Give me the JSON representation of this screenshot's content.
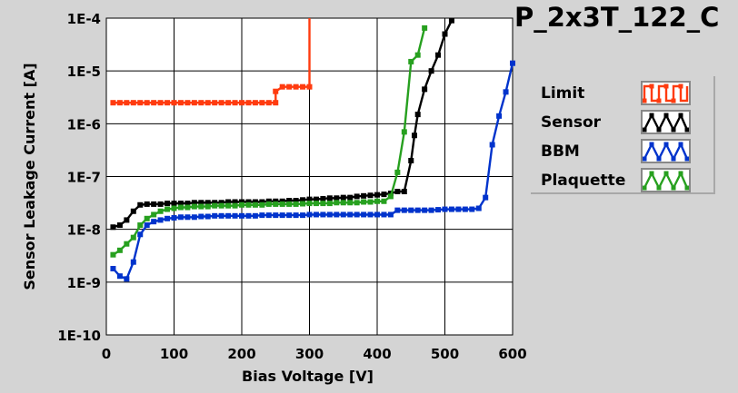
{
  "chart_data": {
    "type": "line",
    "title": "P_2x3T_122_C",
    "xlabel": "Bias Voltage [V]",
    "ylabel": "Sensor Leakage Current [A]",
    "xlim": [
      0,
      600
    ],
    "ylim": [
      1e-10,
      0.0001
    ],
    "yscale": "log",
    "grid": true,
    "legend_position": "right",
    "x_ticks": [
      "0",
      "100",
      "200",
      "300",
      "400",
      "500",
      "600"
    ],
    "y_ticks": [
      "1E-10",
      "1E-9",
      "1E-8",
      "1E-7",
      "1E-6",
      "1E-5",
      "1E-4"
    ],
    "series": [
      {
        "name": "Limit",
        "color": "#ff3b0f",
        "pattern": "square-wave",
        "points": [
          [
            10,
            2.5e-06
          ],
          [
            20,
            2.5e-06
          ],
          [
            30,
            2.5e-06
          ],
          [
            40,
            2.5e-06
          ],
          [
            50,
            2.5e-06
          ],
          [
            60,
            2.5e-06
          ],
          [
            70,
            2.5e-06
          ],
          [
            80,
            2.5e-06
          ],
          [
            90,
            2.5e-06
          ],
          [
            100,
            2.5e-06
          ],
          [
            110,
            2.5e-06
          ],
          [
            120,
            2.5e-06
          ],
          [
            130,
            2.5e-06
          ],
          [
            140,
            2.5e-06
          ],
          [
            150,
            2.5e-06
          ],
          [
            160,
            2.5e-06
          ],
          [
            170,
            2.5e-06
          ],
          [
            180,
            2.5e-06
          ],
          [
            190,
            2.5e-06
          ],
          [
            200,
            2.5e-06
          ],
          [
            210,
            2.5e-06
          ],
          [
            220,
            2.5e-06
          ],
          [
            230,
            2.5e-06
          ],
          [
            240,
            2.5e-06
          ],
          [
            250,
            2.5e-06
          ],
          [
            250,
            4.1e-06
          ],
          [
            260,
            5e-06
          ],
          [
            270,
            5e-06
          ],
          [
            280,
            5e-06
          ],
          [
            290,
            5e-06
          ],
          [
            300,
            5e-06
          ],
          [
            300,
            0.0001
          ]
        ]
      },
      {
        "name": "Sensor",
        "color": "#000000",
        "pattern": "triangle-wave",
        "points": [
          [
            10,
            1.1e-08
          ],
          [
            20,
            1.2e-08
          ],
          [
            30,
            1.5e-08
          ],
          [
            40,
            2.2e-08
          ],
          [
            50,
            2.9e-08
          ],
          [
            60,
            3e-08
          ],
          [
            70,
            3e-08
          ],
          [
            80,
            3e-08
          ],
          [
            90,
            3.1e-08
          ],
          [
            100,
            3.1e-08
          ],
          [
            110,
            3.1e-08
          ],
          [
            120,
            3.1e-08
          ],
          [
            130,
            3.2e-08
          ],
          [
            140,
            3.2e-08
          ],
          [
            150,
            3.2e-08
          ],
          [
            160,
            3.2e-08
          ],
          [
            170,
            3.2e-08
          ],
          [
            180,
            3.3e-08
          ],
          [
            190,
            3.3e-08
          ],
          [
            200,
            3.3e-08
          ],
          [
            210,
            3.3e-08
          ],
          [
            220,
            3.3e-08
          ],
          [
            230,
            3.3e-08
          ],
          [
            240,
            3.4e-08
          ],
          [
            250,
            3.4e-08
          ],
          [
            260,
            3.4e-08
          ],
          [
            270,
            3.5e-08
          ],
          [
            280,
            3.5e-08
          ],
          [
            290,
            3.6e-08
          ],
          [
            300,
            3.7e-08
          ],
          [
            310,
            3.7e-08
          ],
          [
            320,
            3.8e-08
          ],
          [
            330,
            3.9e-08
          ],
          [
            340,
            3.9e-08
          ],
          [
            350,
            4e-08
          ],
          [
            360,
            4e-08
          ],
          [
            370,
            4.2e-08
          ],
          [
            380,
            4.3e-08
          ],
          [
            390,
            4.4e-08
          ],
          [
            400,
            4.5e-08
          ],
          [
            410,
            4.6e-08
          ],
          [
            420,
            4.8e-08
          ],
          [
            430,
            5.2e-08
          ],
          [
            440,
            5.2e-08
          ],
          [
            450,
            2e-07
          ],
          [
            455,
            6e-07
          ],
          [
            460,
            1.5e-06
          ],
          [
            470,
            4.5e-06
          ],
          [
            480,
            1e-05
          ],
          [
            490,
            2e-05
          ],
          [
            500,
            5e-05
          ],
          [
            510,
            9e-05
          ]
        ]
      },
      {
        "name": "BBM",
        "color": "#0033cc",
        "pattern": "triangle-wave",
        "points": [
          [
            10,
            1.8e-09
          ],
          [
            20,
            1.3e-09
          ],
          [
            30,
            1.15e-09
          ],
          [
            40,
            2.4e-09
          ],
          [
            50,
            8e-09
          ],
          [
            60,
            1.2e-08
          ],
          [
            70,
            1.4e-08
          ],
          [
            80,
            1.5e-08
          ],
          [
            90,
            1.6e-08
          ],
          [
            100,
            1.65e-08
          ],
          [
            110,
            1.7e-08
          ],
          [
            120,
            1.7e-08
          ],
          [
            130,
            1.7e-08
          ],
          [
            140,
            1.75e-08
          ],
          [
            150,
            1.75e-08
          ],
          [
            160,
            1.8e-08
          ],
          [
            170,
            1.8e-08
          ],
          [
            180,
            1.8e-08
          ],
          [
            190,
            1.8e-08
          ],
          [
            200,
            1.8e-08
          ],
          [
            210,
            1.8e-08
          ],
          [
            220,
            1.8e-08
          ],
          [
            230,
            1.85e-08
          ],
          [
            240,
            1.85e-08
          ],
          [
            250,
            1.85e-08
          ],
          [
            260,
            1.85e-08
          ],
          [
            270,
            1.85e-08
          ],
          [
            280,
            1.85e-08
          ],
          [
            290,
            1.85e-08
          ],
          [
            300,
            1.9e-08
          ],
          [
            310,
            1.9e-08
          ],
          [
            320,
            1.9e-08
          ],
          [
            330,
            1.9e-08
          ],
          [
            340,
            1.9e-08
          ],
          [
            350,
            1.9e-08
          ],
          [
            360,
            1.9e-08
          ],
          [
            370,
            1.9e-08
          ],
          [
            380,
            1.9e-08
          ],
          [
            390,
            1.9e-08
          ],
          [
            400,
            1.9e-08
          ],
          [
            410,
            1.9e-08
          ],
          [
            420,
            1.9e-08
          ],
          [
            430,
            2.3e-08
          ],
          [
            440,
            2.3e-08
          ],
          [
            450,
            2.3e-08
          ],
          [
            460,
            2.3e-08
          ],
          [
            470,
            2.3e-08
          ],
          [
            480,
            2.3e-08
          ],
          [
            490,
            2.35e-08
          ],
          [
            500,
            2.4e-08
          ],
          [
            510,
            2.4e-08
          ],
          [
            520,
            2.4e-08
          ],
          [
            530,
            2.4e-08
          ],
          [
            540,
            2.4e-08
          ],
          [
            550,
            2.5e-08
          ],
          [
            560,
            4e-08
          ],
          [
            570,
            4e-07
          ],
          [
            580,
            1.4e-06
          ],
          [
            590,
            4e-06
          ],
          [
            600,
            1.4e-05
          ]
        ]
      },
      {
        "name": "Plaquette",
        "color": "#27a01f",
        "pattern": "triangle-wave",
        "points": [
          [
            10,
            3.3e-09
          ],
          [
            20,
            4e-09
          ],
          [
            30,
            5.3e-09
          ],
          [
            40,
            7e-09
          ],
          [
            50,
            1.2e-08
          ],
          [
            60,
            1.6e-08
          ],
          [
            70,
            1.9e-08
          ],
          [
            80,
            2.2e-08
          ],
          [
            90,
            2.4e-08
          ],
          [
            100,
            2.5e-08
          ],
          [
            110,
            2.6e-08
          ],
          [
            120,
            2.6e-08
          ],
          [
            130,
            2.7e-08
          ],
          [
            140,
            2.7e-08
          ],
          [
            150,
            2.7e-08
          ],
          [
            160,
            2.8e-08
          ],
          [
            170,
            2.8e-08
          ],
          [
            180,
            2.8e-08
          ],
          [
            190,
            2.8e-08
          ],
          [
            200,
            2.9e-08
          ],
          [
            210,
            2.9e-08
          ],
          [
            220,
            2.9e-08
          ],
          [
            230,
            2.9e-08
          ],
          [
            240,
            3e-08
          ],
          [
            250,
            3e-08
          ],
          [
            260,
            3e-08
          ],
          [
            270,
            3e-08
          ],
          [
            280,
            3e-08
          ],
          [
            290,
            3.05e-08
          ],
          [
            300,
            3.1e-08
          ],
          [
            310,
            3.1e-08
          ],
          [
            320,
            3.1e-08
          ],
          [
            330,
            3.1e-08
          ],
          [
            340,
            3.2e-08
          ],
          [
            350,
            3.2e-08
          ],
          [
            360,
            3.2e-08
          ],
          [
            370,
            3.2e-08
          ],
          [
            380,
            3.3e-08
          ],
          [
            390,
            3.3e-08
          ],
          [
            400,
            3.4e-08
          ],
          [
            410,
            3.4e-08
          ],
          [
            420,
            4.2e-08
          ],
          [
            430,
            1.2e-07
          ],
          [
            440,
            7e-07
          ],
          [
            450,
            1.5e-05
          ],
          [
            460,
            2e-05
          ],
          [
            470,
            6.5e-05
          ]
        ]
      }
    ]
  }
}
